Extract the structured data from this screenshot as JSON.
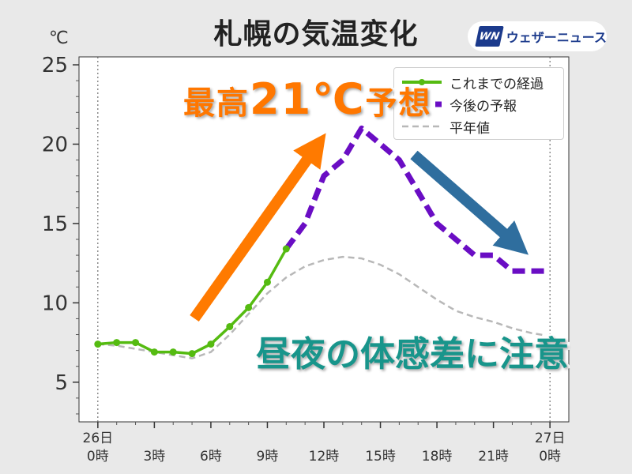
{
  "header": {
    "title": "札幌の気温変化",
    "brand_logo": "WN",
    "brand_name": "ウェザーニュース"
  },
  "callouts": {
    "high_prefix": "最高",
    "high_value": "21℃",
    "high_suffix": "予想",
    "caution": "昼夜の体感差に注意"
  },
  "colors": {
    "observed": "#55bb11",
    "forecast": "#6a0dc4",
    "normal": "#b8b8b8",
    "arrow_up": "#ff7a00",
    "arrow_down": "#2f6e9e",
    "caution_text": "#18958b",
    "highlight_text": "#ff7700"
  },
  "chart_data": {
    "type": "line",
    "unit_label": "℃",
    "ylim": [
      2.5,
      25.5
    ],
    "xlim": [
      -1,
      25
    ],
    "yticks": [
      5,
      10,
      15,
      20,
      25
    ],
    "xticks": [
      {
        "x": 0,
        "line1": "26日",
        "line2": "0時"
      },
      {
        "x": 3,
        "line1": "",
        "line2": "3時"
      },
      {
        "x": 6,
        "line1": "",
        "line2": "6時"
      },
      {
        "x": 9,
        "line1": "",
        "line2": "9時"
      },
      {
        "x": 12,
        "line1": "",
        "line2": "12時"
      },
      {
        "x": 15,
        "line1": "",
        "line2": "15時"
      },
      {
        "x": 18,
        "line1": "",
        "line2": "18時"
      },
      {
        "x": 21,
        "line1": "",
        "line2": "21時"
      },
      {
        "x": 24,
        "line1": "27日",
        "line2": "0時"
      }
    ],
    "legend_position": "top-right",
    "series": [
      {
        "name": "これまでの経過",
        "style": "solid-markers",
        "x": [
          0,
          1,
          2,
          3,
          4,
          5,
          6,
          7,
          8,
          9,
          10
        ],
        "y": [
          7.4,
          7.5,
          7.5,
          6.9,
          6.9,
          6.8,
          7.4,
          8.5,
          9.7,
          11.3,
          13.4
        ]
      },
      {
        "name": "今後の予報",
        "style": "dashed-thick",
        "x": [
          10,
          11,
          12,
          13,
          14,
          15,
          16,
          17,
          18,
          19,
          20,
          21,
          22,
          23,
          24
        ],
        "y": [
          13.4,
          15,
          18,
          19,
          21,
          20,
          19,
          17,
          15,
          14,
          13,
          13,
          12,
          12,
          12
        ]
      },
      {
        "name": "平年値",
        "style": "dashed-thin",
        "x": [
          0,
          1,
          2,
          3,
          4,
          5,
          6,
          7,
          8,
          9,
          10,
          11,
          12,
          13,
          14,
          15,
          16,
          17,
          18,
          19,
          20,
          21,
          22,
          23,
          24
        ],
        "y": [
          7.4,
          7.3,
          7.1,
          6.9,
          6.7,
          6.5,
          6.9,
          8.0,
          9.3,
          10.6,
          11.6,
          12.3,
          12.7,
          12.9,
          12.8,
          12.4,
          11.8,
          11.0,
          10.2,
          9.5,
          9.1,
          8.8,
          8.4,
          8.1,
          7.9
        ]
      }
    ]
  }
}
